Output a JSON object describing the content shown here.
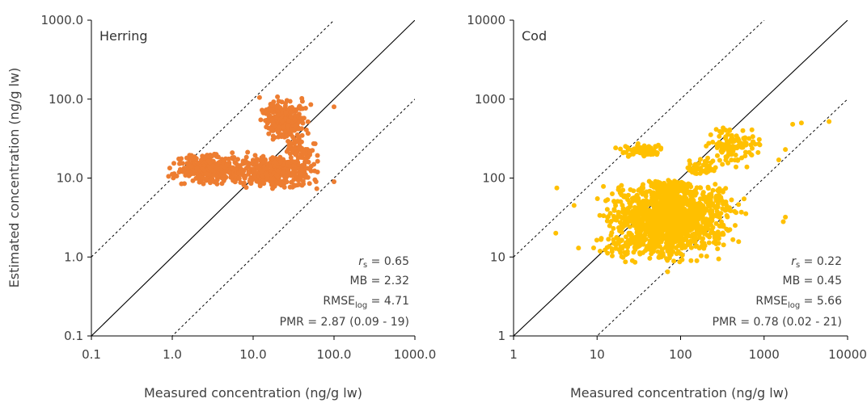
{
  "chart_data": [
    {
      "type": "scatter",
      "title": "Herring",
      "xlabel": "Measured concentration (ng/g lw)",
      "ylabel": "Estimated concentration (ng/g lw)",
      "xscale": "log",
      "yscale": "log",
      "xlim": [
        0.1,
        1000
      ],
      "ylim": [
        0.1,
        1000
      ],
      "xticks": [
        0.1,
        1,
        10,
        100,
        1000
      ],
      "xtick_labels": [
        "0.1",
        "1.0",
        "10.0",
        "100.0",
        "1000.0"
      ],
      "yticks": [
        0.1,
        1,
        10,
        100,
        1000
      ],
      "ytick_labels": [
        "0.1",
        "1.0",
        "10.0",
        "100.0",
        "1000.0"
      ],
      "grid": false,
      "reference_lines": [
        {
          "kind": "1:1",
          "style": "solid",
          "factor": 1
        },
        {
          "kind": "10x",
          "style": "dashed",
          "factor": 10
        },
        {
          "kind": "0.1x",
          "style": "dashed",
          "factor": 0.1
        }
      ],
      "point_color": "#ED7D31",
      "stats": {
        "rs": "0.65",
        "mb": "2.32",
        "rmse_log": "4.71",
        "pmr": "2.87 (0.09 - 19)"
      },
      "clusters": [
        {
          "x_range": [
            0.8,
            12
          ],
          "y_range": [
            8,
            22
          ],
          "n": 320
        },
        {
          "x_range": [
            4,
            80
          ],
          "y_range": [
            7,
            20
          ],
          "n": 360
        },
        {
          "x_range": [
            10,
            60
          ],
          "y_range": [
            30,
            100
          ],
          "n": 260
        },
        {
          "x_range": [
            20,
            80
          ],
          "y_range": [
            12,
            40
          ],
          "n": 80
        }
      ],
      "points": [
        [
          0.9,
          10.5
        ],
        [
          1.0,
          11.2
        ],
        [
          1.6,
          14.6
        ],
        [
          2.5,
          12.5
        ],
        [
          3.5,
          20.0
        ],
        [
          60,
          9.0
        ],
        [
          100,
          9.0
        ],
        [
          100,
          80.0
        ],
        [
          12,
          105.0
        ],
        [
          20,
          107.0
        ],
        [
          40,
          102.0
        ]
      ]
    },
    {
      "type": "scatter",
      "title": "Cod",
      "xlabel": "Measured concentration (ng/g lw)",
      "ylabel": "",
      "xscale": "log",
      "yscale": "log",
      "xlim": [
        1,
        10000
      ],
      "ylim": [
        1,
        10000
      ],
      "xticks": [
        1,
        10,
        100,
        1000,
        10000
      ],
      "xtick_labels": [
        "1",
        "10",
        "100",
        "1000",
        "10000"
      ],
      "yticks": [
        1,
        10,
        100,
        1000,
        10000
      ],
      "ytick_labels": [
        "1",
        "10",
        "100",
        "1000",
        "10000"
      ],
      "grid": false,
      "reference_lines": [
        {
          "kind": "1:1",
          "style": "solid",
          "factor": 1
        },
        {
          "kind": "10x",
          "style": "dashed",
          "factor": 10
        },
        {
          "kind": "0.1x",
          "style": "dashed",
          "factor": 0.1
        }
      ],
      "point_color": "#FFC000",
      "stats": {
        "rs": "0.22",
        "mb": "0.45",
        "rmse_log": "5.66",
        "pmr": "0.78 (0.02 - 21)"
      },
      "clusters": [
        {
          "x_range": [
            8,
            700
          ],
          "y_range": [
            12,
            90
          ],
          "n": 1300
        },
        {
          "x_range": [
            5,
            400
          ],
          "y_range": [
            8,
            25
          ],
          "n": 200
        },
        {
          "x_range": [
            30,
            200
          ],
          "y_range": [
            60,
            95
          ],
          "n": 120
        },
        {
          "x_range": [
            15,
            80
          ],
          "y_range": [
            180,
            280
          ],
          "n": 60
        },
        {
          "x_range": [
            150,
            1200
          ],
          "y_range": [
            130,
            520
          ],
          "n": 120
        },
        {
          "x_range": [
            100,
            300
          ],
          "y_range": [
            100,
            180
          ],
          "n": 40
        }
      ],
      "points": [
        [
          3.3,
          75
        ],
        [
          3.2,
          20
        ],
        [
          6,
          13
        ],
        [
          5.3,
          45
        ],
        [
          6000,
          520
        ],
        [
          1800,
          230
        ],
        [
          1800,
          32
        ],
        [
          1700,
          28
        ],
        [
          2200,
          480
        ],
        [
          2800,
          500
        ],
        [
          1500,
          170
        ],
        [
          70,
          6.5
        ]
      ]
    }
  ]
}
